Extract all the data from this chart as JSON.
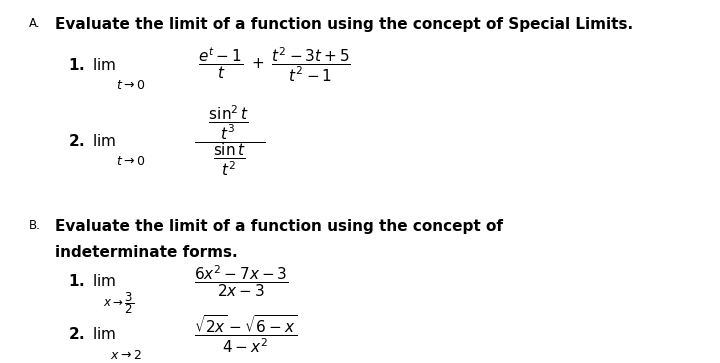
{
  "bg_color": "#ffffff",
  "text_color": "#000000",
  "figsize": [
    7.2,
    3.63
  ],
  "dpi": 100,
  "label_A": "A.",
  "label_B": "B.",
  "header_A": "Evaluate the limit of a function using the concept of Special Limits.",
  "header_B1": "Evaluate the limit of a function using the concept of",
  "header_B2": "indeterminate forms.",
  "A1_prefix": "1. lim",
  "A1_sub": "$t\\to0$",
  "A1_expr": "$\\dfrac{e^t-1}{t} + \\dfrac{t^2-3t+5}{t^2-1}$",
  "A2_prefix": "2. lim",
  "A2_sub": "$t\\to0$",
  "A2_expr": "$\\dfrac{\\dfrac{\\sin^2 t}{t^3}}{\\dfrac{\\sin t}{t^2}}$",
  "B1_prefix": "1. lim",
  "B1_sub": "$x\\to\\dfrac{3}{2}$",
  "B1_expr": "$\\dfrac{6x^2-7x-3}{2x-3}$",
  "B2_prefix": "2. lim",
  "B2_sub": "$x\\to2$",
  "B2_expr": "$\\dfrac{\\sqrt{2x}-\\sqrt{6-x}}{4-x^2}$"
}
